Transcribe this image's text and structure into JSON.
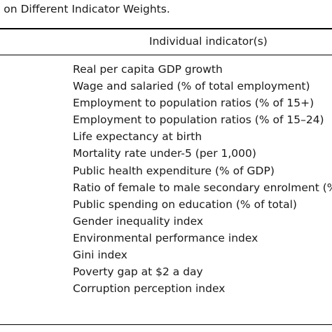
{
  "caption": "l on Different Indicator Weights.",
  "table": {
    "column_header": "Individual indicator(s)",
    "indicators": [
      "Real per capita GDP growth",
      "Wage and salaried (% of total employment)",
      "Employment to population ratios (% of 15+)",
      "Employment to population ratios (% of 15–24)",
      "Life expectancy at birth",
      "Mortality rate under-5 (per 1,000)",
      "Public health expenditure (% of GDP)",
      "Ratio of female to male secondary enrolment (%",
      "Public spending on education (% of total)",
      "Gender inequality index",
      "Environmental performance index",
      "Gini index",
      "Poverty gap at $2 a day",
      "Corruption perception index"
    ]
  }
}
